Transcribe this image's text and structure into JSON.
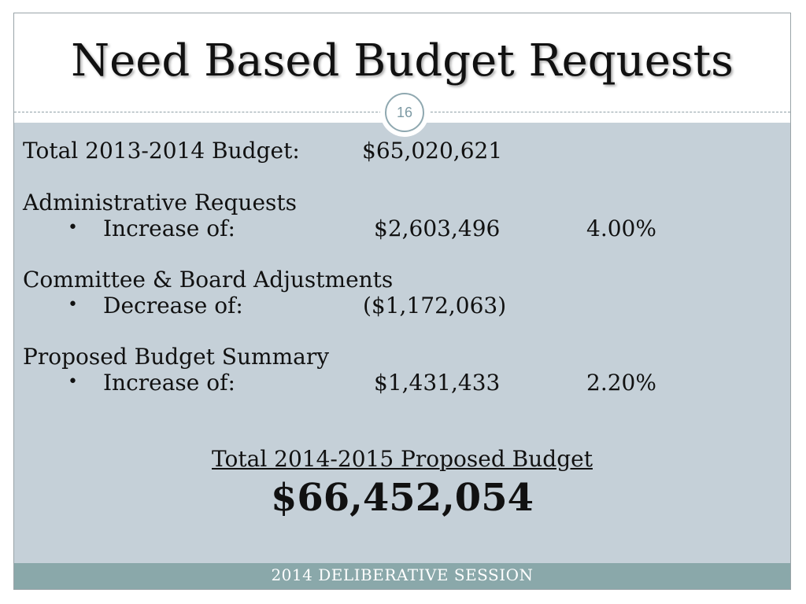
{
  "title": "Need Based Budget Requests",
  "slide_number": "16",
  "total_line": {
    "label": "Total 2013-2014 Budget:",
    "value": "$65,020,621"
  },
  "sections": [
    {
      "heading": "Administrative Requests",
      "bullet": "•",
      "item_label": "Increase of:",
      "amount": "$2,603,496",
      "percent": "4.00%"
    },
    {
      "heading": "Committee & Board Adjustments",
      "bullet": "•",
      "item_label": "Decrease of:",
      "amount": "($1,172,063)",
      "percent": ""
    },
    {
      "heading": "Proposed Budget Summary",
      "bullet": "•",
      "item_label": "Increase of:",
      "amount": "$1,431,433",
      "percent": "2.20%"
    }
  ],
  "proposed": {
    "label": "Total 2014-2015 Proposed Budget",
    "value": "$66,452,054"
  },
  "footer": "2014 DELIBERATIVE SESSION",
  "colors": {
    "content_bg": "#c5d0d8",
    "footer_bg": "#8aa8aa",
    "badge_ring": "#8fa8b0"
  }
}
